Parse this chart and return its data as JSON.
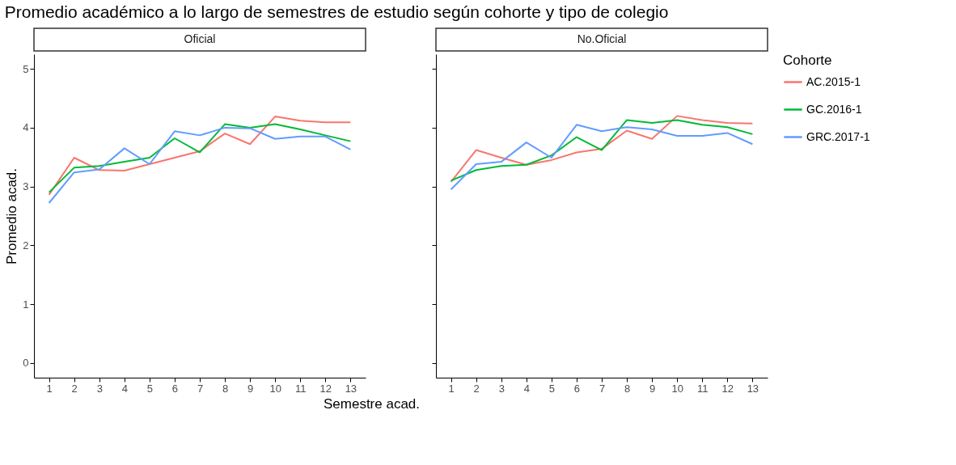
{
  "chart_data": [
    {
      "type": "line",
      "title": "Promedio académico a lo largo de semestres de estudio según cohorte y tipo de colegio",
      "subtitle": "Oficial",
      "xlabel": "Semestre acad.",
      "ylabel": "Promedio acad.",
      "legend_title": "Cohorte",
      "legend": "right",
      "grid": false,
      "x": [
        1,
        2,
        3,
        4,
        5,
        6,
        7,
        8,
        9,
        10,
        11,
        12,
        13
      ],
      "xlim": [
        0.4,
        13.6
      ],
      "xticks": [
        1,
        2,
        3,
        4,
        5,
        6,
        7,
        8,
        9,
        10,
        11,
        12,
        13
      ],
      "ylim": [
        -0.25,
        5.25
      ],
      "yticks": [
        0,
        1,
        2,
        3,
        4,
        5
      ],
      "series": [
        {
          "name": "AC.2015-1",
          "color": "#f8766d",
          "values": [
            2.86,
            3.49,
            3.28,
            3.27,
            3.38,
            3.49,
            3.6,
            3.9,
            3.72,
            4.19,
            4.12,
            4.09,
            4.09
          ]
        },
        {
          "name": "GC.2016-1",
          "color": "#00ba38",
          "values": [
            2.9,
            3.32,
            3.35,
            3.42,
            3.49,
            3.82,
            3.58,
            4.06,
            4.0,
            4.06,
            3.97,
            3.87,
            3.77
          ]
        },
        {
          "name": "GRC.2017-1",
          "color": "#619cff",
          "values": [
            2.72,
            3.24,
            3.29,
            3.65,
            3.38,
            3.94,
            3.87,
            4.0,
            3.99,
            3.81,
            3.85,
            3.85,
            3.63
          ]
        }
      ]
    },
    {
      "type": "line",
      "subtitle": "No.Oficial",
      "tick_labels": "x",
      "grid": false,
      "x": [
        1,
        2,
        3,
        4,
        5,
        6,
        7,
        8,
        9,
        10,
        11,
        12,
        13
      ],
      "xlim": [
        0.4,
        13.6
      ],
      "xticks": [
        1,
        2,
        3,
        4,
        5,
        6,
        7,
        8,
        9,
        10,
        11,
        12,
        13
      ],
      "ylim": [
        -0.25,
        5.25
      ],
      "yticks": [
        0,
        1,
        2,
        3,
        4,
        5
      ],
      "series": [
        {
          "name": "AC.2015-1",
          "color": "#f8766d",
          "values": [
            3.08,
            3.62,
            3.49,
            3.37,
            3.45,
            3.58,
            3.64,
            3.95,
            3.81,
            4.2,
            4.13,
            4.08,
            4.07
          ]
        },
        {
          "name": "GC.2016-1",
          "color": "#00ba38",
          "values": [
            3.1,
            3.28,
            3.35,
            3.37,
            3.53,
            3.84,
            3.62,
            4.13,
            4.08,
            4.13,
            4.05,
            4.01,
            3.89
          ]
        },
        {
          "name": "GRC.2017-1",
          "color": "#619cff",
          "values": [
            2.95,
            3.38,
            3.42,
            3.75,
            3.49,
            4.05,
            3.94,
            4.01,
            3.97,
            3.86,
            3.86,
            3.91,
            3.72
          ]
        }
      ]
    }
  ]
}
